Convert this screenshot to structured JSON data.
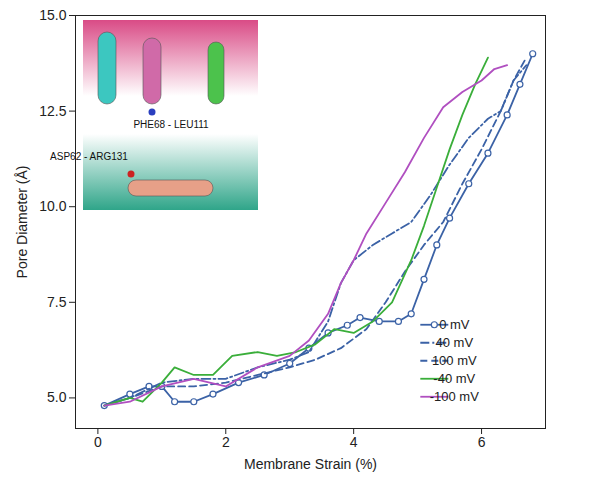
{
  "chart_data": {
    "type": "line",
    "x_label": "Membrane Strain (%)",
    "y_label": "Pore Diameter (Å)",
    "xlim": [
      -0.35,
      7.0
    ],
    "xticks": [
      0,
      2,
      4,
      6
    ],
    "ylim": [
      4.2,
      15.0
    ],
    "yticks": [
      {
        "value": 5,
        "label": "5.0"
      },
      {
        "value": 7.5,
        "label": "7.5"
      },
      {
        "value": 10,
        "label": "10.0"
      },
      {
        "value": 12.5,
        "label": "12.5"
      },
      {
        "value": 15,
        "label": "15.0"
      }
    ],
    "grid": false,
    "legend": "lower right",
    "annotations": [
      "PHE68 - LEU111",
      "ASP62 - ARG131"
    ],
    "series": [
      {
        "name": "0 mV",
        "color": "#3b62a6",
        "line_style": "solid",
        "marker": "circle",
        "x": [
          0.1,
          0.5,
          0.8,
          1.0,
          1.2,
          1.5,
          1.8,
          2.2,
          2.6,
          3.0,
          3.3,
          3.6,
          3.9,
          4.1,
          4.4,
          4.7,
          4.9,
          5.1,
          5.3,
          5.5,
          5.8,
          6.1,
          6.4,
          6.6,
          6.8
        ],
        "values": [
          4.8,
          5.1,
          5.3,
          5.3,
          4.9,
          4.9,
          5.1,
          5.4,
          5.6,
          5.9,
          6.3,
          6.7,
          6.9,
          7.1,
          7.0,
          7.0,
          7.2,
          8.1,
          9.0,
          9.7,
          10.6,
          11.4,
          12.4,
          13.2,
          14.0
        ]
      },
      {
        "name": "40 mV",
        "color": "#3b62a6",
        "line_style": "dashdot",
        "marker": "none",
        "x": [
          0.1,
          0.5,
          1.0,
          1.5,
          2.0,
          2.5,
          3.0,
          3.3,
          3.6,
          3.8,
          4.0,
          4.3,
          4.6,
          4.9,
          5.2,
          5.5,
          5.8,
          6.1,
          6.3,
          6.5,
          6.7
        ],
        "values": [
          4.8,
          5.0,
          5.4,
          5.5,
          5.5,
          5.8,
          6.0,
          6.2,
          7.0,
          8.0,
          8.6,
          9.0,
          9.3,
          9.6,
          10.3,
          11.1,
          11.8,
          12.3,
          12.5,
          13.3,
          13.7
        ]
      },
      {
        "name": "100 mV",
        "color": "#3b62a6",
        "line_style": "dashed",
        "marker": "none",
        "x": [
          0.1,
          0.5,
          1.0,
          1.5,
          2.0,
          2.5,
          3.0,
          3.4,
          3.8,
          4.2,
          4.5,
          4.8,
          5.1,
          5.4,
          5.7,
          6.0,
          6.3,
          6.5,
          6.7
        ],
        "values": [
          4.8,
          5.0,
          5.3,
          5.3,
          5.4,
          5.6,
          5.8,
          6.0,
          6.3,
          6.8,
          7.5,
          8.3,
          9.0,
          9.6,
          10.6,
          11.5,
          12.5,
          13.3,
          13.9
        ]
      },
      {
        "name": "-40 mV",
        "color": "#3aae3a",
        "line_style": "solid",
        "marker": "none",
        "x": [
          0.1,
          0.5,
          0.7,
          1.0,
          1.2,
          1.5,
          1.8,
          2.1,
          2.5,
          2.8,
          3.1,
          3.4,
          3.7,
          4.0,
          4.3,
          4.6,
          4.9,
          5.1,
          5.3,
          5.5,
          5.7,
          5.9,
          6.1
        ],
        "values": [
          4.8,
          5.0,
          4.9,
          5.4,
          5.8,
          5.6,
          5.6,
          6.1,
          6.2,
          6.1,
          6.2,
          6.4,
          6.8,
          6.7,
          7.0,
          7.5,
          8.6,
          9.5,
          10.5,
          11.5,
          12.4,
          13.2,
          13.9
        ]
      },
      {
        "name": "-100 mV",
        "color": "#b04fc0",
        "line_style": "solid",
        "marker": "none",
        "x": [
          0.1,
          0.5,
          1.0,
          1.5,
          2.0,
          2.5,
          3.0,
          3.3,
          3.6,
          3.8,
          4.0,
          4.2,
          4.5,
          4.8,
          5.1,
          5.4,
          5.7,
          6.0,
          6.2,
          6.4
        ],
        "values": [
          4.8,
          4.9,
          5.3,
          5.5,
          5.3,
          5.8,
          6.1,
          6.5,
          7.2,
          8.0,
          8.6,
          9.3,
          10.1,
          10.9,
          11.8,
          12.6,
          13.0,
          13.3,
          13.6,
          13.7
        ]
      }
    ]
  }
}
